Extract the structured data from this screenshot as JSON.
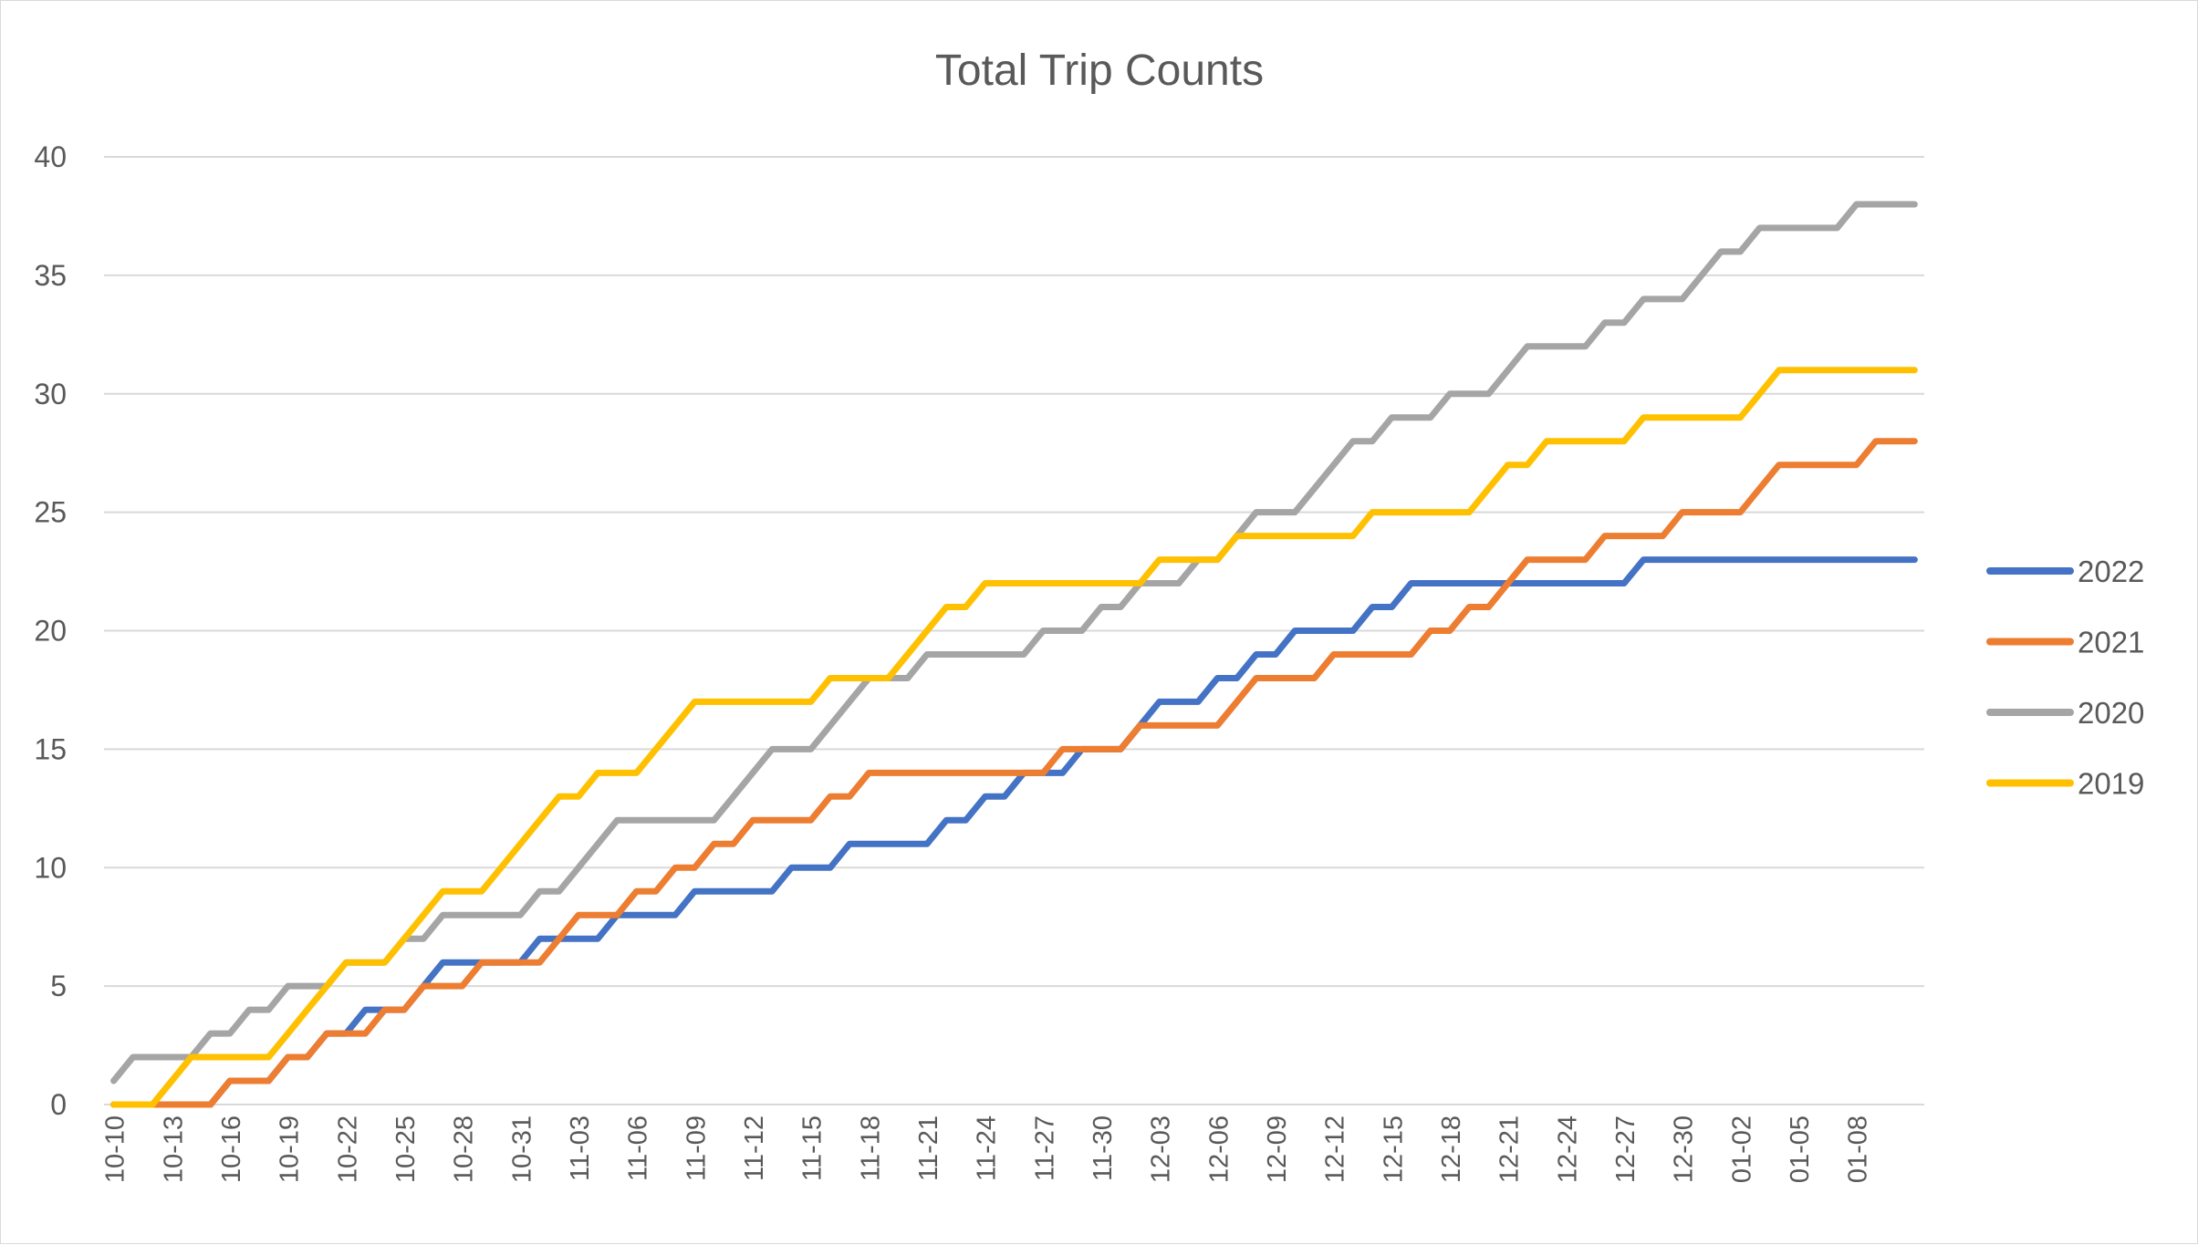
{
  "chart_data": {
    "type": "line",
    "title": "Total Trip Counts",
    "xlabel": "",
    "ylabel": "",
    "ylim": [
      0,
      40
    ],
    "yticks": [
      0,
      5,
      10,
      15,
      20,
      25,
      30,
      35,
      40
    ],
    "grid": true,
    "legend_position": "right",
    "x": [
      "10-10",
      "10-11",
      "10-12",
      "10-13",
      "10-14",
      "10-15",
      "10-16",
      "10-17",
      "10-18",
      "10-19",
      "10-20",
      "10-21",
      "10-22",
      "10-23",
      "10-24",
      "10-25",
      "10-26",
      "10-27",
      "10-28",
      "10-29",
      "10-30",
      "10-31",
      "11-01",
      "11-02",
      "11-03",
      "11-04",
      "11-05",
      "11-06",
      "11-07",
      "11-08",
      "11-09",
      "11-10",
      "11-11",
      "11-12",
      "11-13",
      "11-14",
      "11-15",
      "11-16",
      "11-17",
      "11-18",
      "11-19",
      "11-20",
      "11-21",
      "11-22",
      "11-23",
      "11-24",
      "11-25",
      "11-26",
      "11-27",
      "11-28",
      "11-29",
      "11-30",
      "12-01",
      "12-02",
      "12-03",
      "12-04",
      "12-05",
      "12-06",
      "12-07",
      "12-08",
      "12-09",
      "12-10",
      "12-11",
      "12-12",
      "12-13",
      "12-14",
      "12-15",
      "12-16",
      "12-17",
      "12-18",
      "12-19",
      "12-20",
      "12-21",
      "12-22",
      "12-23",
      "12-24",
      "12-25",
      "12-26",
      "12-27",
      "12-28",
      "12-29",
      "12-30",
      "12-31",
      "01-01",
      "01-02",
      "01-03",
      "01-04",
      "01-05",
      "01-06",
      "01-07",
      "01-08",
      "01-09",
      "01-10",
      "01-11"
    ],
    "x_tick_labels": [
      "10-10",
      "10-13",
      "10-16",
      "10-19",
      "10-22",
      "10-25",
      "10-28",
      "10-31",
      "11-03",
      "11-06",
      "11-09",
      "11-12",
      "11-15",
      "11-18",
      "11-21",
      "11-24",
      "11-27",
      "11-30",
      "12-03",
      "12-06",
      "12-09",
      "12-12",
      "12-15",
      "12-18",
      "12-21",
      "12-24",
      "12-27",
      "12-30",
      "01-02",
      "01-05",
      "01-08"
    ],
    "series": [
      {
        "name": "2022",
        "color": "#4472C4",
        "values": [
          0,
          0,
          0,
          0,
          0,
          0,
          1,
          1,
          1,
          2,
          2,
          3,
          3,
          4,
          4,
          4,
          5,
          6,
          6,
          6,
          6,
          6,
          7,
          7,
          7,
          7,
          8,
          8,
          8,
          8,
          9,
          9,
          9,
          9,
          9,
          10,
          10,
          10,
          11,
          11,
          11,
          11,
          11,
          12,
          12,
          13,
          13,
          14,
          14,
          14,
          15,
          15,
          15,
          16,
          17,
          17,
          17,
          18,
          18,
          19,
          19,
          20,
          20,
          20,
          20,
          21,
          21,
          22,
          22,
          22,
          22,
          22,
          22,
          22,
          22,
          22,
          22,
          22,
          22,
          23,
          23,
          23,
          23,
          23,
          23,
          23,
          23,
          23,
          23,
          23,
          23,
          23,
          23,
          23
        ]
      },
      {
        "name": "2021",
        "color": "#ED7D31",
        "values": [
          0,
          0,
          0,
          0,
          0,
          0,
          1,
          1,
          1,
          2,
          2,
          3,
          3,
          3,
          4,
          4,
          5,
          5,
          5,
          6,
          6,
          6,
          6,
          7,
          8,
          8,
          8,
          9,
          9,
          10,
          10,
          11,
          11,
          12,
          12,
          12,
          12,
          13,
          13,
          14,
          14,
          14,
          14,
          14,
          14,
          14,
          14,
          14,
          14,
          15,
          15,
          15,
          15,
          16,
          16,
          16,
          16,
          16,
          17,
          18,
          18,
          18,
          18,
          19,
          19,
          19,
          19,
          19,
          20,
          20,
          21,
          21,
          22,
          23,
          23,
          23,
          23,
          24,
          24,
          24,
          24,
          25,
          25,
          25,
          25,
          26,
          27,
          27,
          27,
          27,
          27,
          28,
          28,
          28
        ]
      },
      {
        "name": "2020",
        "color": "#A5A5A5",
        "values": [
          1,
          2,
          2,
          2,
          2,
          3,
          3,
          4,
          4,
          5,
          5,
          5,
          6,
          6,
          6,
          7,
          7,
          8,
          8,
          8,
          8,
          8,
          9,
          9,
          10,
          11,
          12,
          12,
          12,
          12,
          12,
          12,
          13,
          14,
          15,
          15,
          15,
          16,
          17,
          18,
          18,
          18,
          19,
          19,
          19,
          19,
          19,
          19,
          20,
          20,
          20,
          21,
          21,
          22,
          22,
          22,
          23,
          23,
          24,
          25,
          25,
          25,
          26,
          27,
          28,
          28,
          29,
          29,
          29,
          30,
          30,
          30,
          31,
          32,
          32,
          32,
          32,
          33,
          33,
          34,
          34,
          34,
          35,
          36,
          36,
          37,
          37,
          37,
          37,
          37,
          38,
          38,
          38,
          38
        ]
      },
      {
        "name": "2019",
        "color": "#FFC000",
        "values": [
          0,
          0,
          0,
          1,
          2,
          2,
          2,
          2,
          2,
          3,
          4,
          5,
          6,
          6,
          6,
          7,
          8,
          9,
          9,
          9,
          10,
          11,
          12,
          13,
          13,
          14,
          14,
          14,
          15,
          16,
          17,
          17,
          17,
          17,
          17,
          17,
          17,
          18,
          18,
          18,
          18,
          19,
          20,
          21,
          21,
          22,
          22,
          22,
          22,
          22,
          22,
          22,
          22,
          22,
          23,
          23,
          23,
          23,
          24,
          24,
          24,
          24,
          24,
          24,
          24,
          25,
          25,
          25,
          25,
          25,
          25,
          26,
          27,
          27,
          28,
          28,
          28,
          28,
          28,
          29,
          29,
          29,
          29,
          29,
          29,
          30,
          31,
          31,
          31,
          31,
          31,
          31,
          31,
          31
        ]
      }
    ]
  }
}
